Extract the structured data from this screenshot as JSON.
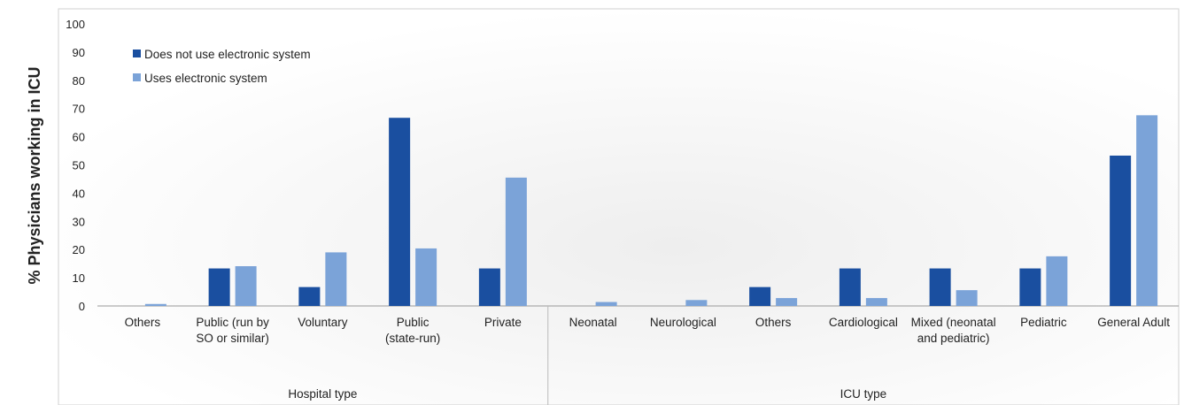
{
  "chart_data": {
    "type": "bar",
    "ylabel": "% Physicians working in ICU",
    "ylim": [
      0,
      100
    ],
    "yticks": [
      0,
      10,
      20,
      30,
      40,
      50,
      60,
      70,
      80,
      90,
      100
    ],
    "grid": false,
    "legend_position": "top-left",
    "groups": [
      {
        "label": "Hospital type",
        "categories": [
          {
            "label": [
              "Others"
            ]
          },
          {
            "label": [
              "Public (run by",
              "SO or similar)"
            ]
          },
          {
            "label": [
              "Voluntary"
            ]
          },
          {
            "label": [
              "Public",
              "(state-run)"
            ]
          },
          {
            "label": [
              "Private"
            ]
          }
        ]
      },
      {
        "label": "ICU type",
        "categories": [
          {
            "label": [
              "Neonatal"
            ]
          },
          {
            "label": [
              "Neurological"
            ]
          },
          {
            "label": [
              "Others"
            ]
          },
          {
            "label": [
              "Cardiological"
            ]
          },
          {
            "label": [
              "Mixed (neonatal",
              "and pediatric)"
            ]
          },
          {
            "label": [
              "Pediatric"
            ]
          },
          {
            "label": [
              "General Adult"
            ]
          }
        ]
      }
    ],
    "series": [
      {
        "name": "Does not use electronic system",
        "color": "#1a4fa0",
        "values": [
          0,
          13.3,
          6.7,
          66.7,
          13.3,
          0,
          0,
          6.7,
          13.3,
          13.3,
          13.3,
          53.3
        ]
      },
      {
        "name": "Uses electronic system",
        "color": "#7ba3d8",
        "values": [
          0.7,
          14.1,
          19.0,
          20.4,
          45.5,
          1.4,
          2.1,
          2.8,
          2.8,
          5.6,
          17.6,
          67.6
        ]
      }
    ]
  }
}
